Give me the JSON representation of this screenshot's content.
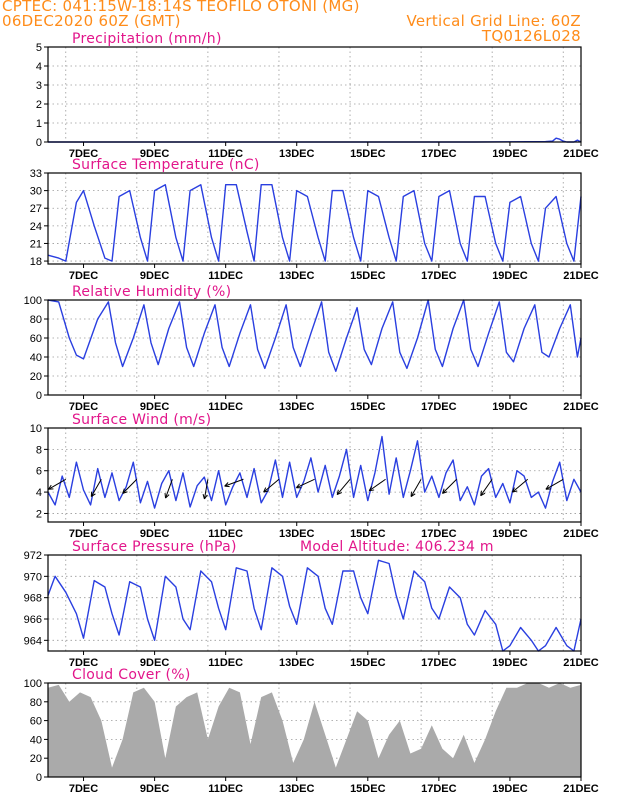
{
  "header": {
    "line1_left": "CPTEC:  041:15W-18:14S  TEOFILO OTONI (MG)",
    "line2_left": "06DEC2020 60Z (GMT)",
    "line2_right": "Vertical Grid Line: 60Z",
    "line3_right": "TQ0126L028"
  },
  "colors": {
    "header": "#ff8c1a",
    "panel_title": "#e2168b",
    "series": "#2a3fe0",
    "cloud_fill": "#aaaaaa",
    "grid": "#9a9a9a"
  },
  "x_axis": {
    "start_date": "06DEC2020 00Z",
    "end_date": "21DEC2020 00Z",
    "tick_labels": [
      "7DEC",
      "9DEC",
      "11DEC",
      "13DEC",
      "15DEC",
      "17DEC",
      "19DEC",
      "21DEC"
    ]
  },
  "model_altitude_label": "Model Altitude: 406.234 m",
  "chart_data": [
    {
      "type": "area",
      "title": "Precipitation (mm/h)",
      "ylim": [
        0,
        5
      ],
      "yticks": [
        0,
        1,
        2,
        3,
        4,
        5
      ],
      "grid": true,
      "x_days": [
        6.0,
        10.0,
        14.0,
        18.0,
        20.0,
        20.2,
        20.3,
        20.4,
        20.5,
        20.6,
        20.8,
        20.9,
        21.0
      ],
      "values": [
        0,
        0,
        0,
        0,
        0.02,
        0.05,
        0.2,
        0.15,
        0.05,
        0,
        0,
        0.1,
        0
      ]
    },
    {
      "type": "line",
      "title": "Surface Temperature (nC)",
      "ylim": [
        17.5,
        33
      ],
      "yticks": [
        18,
        21,
        24,
        27,
        30,
        33
      ],
      "grid": true,
      "x_days": [
        6.0,
        6.3,
        6.5,
        6.8,
        7.0,
        7.3,
        7.6,
        7.8,
        8.0,
        8.3,
        8.6,
        8.8,
        9.0,
        9.3,
        9.6,
        9.8,
        10.0,
        10.3,
        10.6,
        10.8,
        11.0,
        11.3,
        11.6,
        11.8,
        12.0,
        12.3,
        12.6,
        12.8,
        13.0,
        13.3,
        13.6,
        13.8,
        14.0,
        14.3,
        14.6,
        14.8,
        15.0,
        15.3,
        15.6,
        15.8,
        16.0,
        16.3,
        16.6,
        16.8,
        17.0,
        17.3,
        17.6,
        17.8,
        18.0,
        18.3,
        18.6,
        18.8,
        19.0,
        19.3,
        19.6,
        19.8,
        20.0,
        20.3,
        20.6,
        20.8,
        21.0
      ],
      "values": [
        19,
        18.5,
        18,
        28,
        30,
        24,
        18.5,
        18,
        29,
        30,
        22,
        18,
        30,
        31,
        22,
        18,
        30,
        31,
        22,
        18,
        31,
        31,
        23,
        18,
        31,
        31,
        22,
        18,
        30,
        29,
        22,
        18,
        30,
        30,
        22,
        18,
        30,
        29,
        22,
        18,
        29,
        30,
        21,
        18,
        29,
        30,
        21,
        18,
        29,
        29,
        21,
        18,
        28,
        29,
        21,
        18,
        27,
        29,
        21,
        18,
        29
      ]
    },
    {
      "type": "line",
      "title": "Relative Humidity (%)",
      "ylim": [
        0,
        100
      ],
      "yticks": [
        0,
        20,
        40,
        60,
        80,
        100
      ],
      "grid": true,
      "x_days": [
        6.0,
        6.3,
        6.6,
        6.8,
        7.0,
        7.4,
        7.7,
        7.9,
        8.1,
        8.4,
        8.7,
        8.9,
        9.1,
        9.4,
        9.7,
        9.9,
        10.1,
        10.4,
        10.7,
        10.9,
        11.1,
        11.4,
        11.7,
        11.9,
        12.1,
        12.4,
        12.7,
        12.9,
        13.1,
        13.4,
        13.7,
        13.9,
        14.1,
        14.4,
        14.7,
        14.9,
        15.1,
        15.4,
        15.7,
        15.9,
        16.1,
        16.4,
        16.7,
        16.9,
        17.1,
        17.4,
        17.7,
        17.9,
        18.1,
        18.4,
        18.7,
        18.9,
        19.1,
        19.4,
        19.7,
        19.9,
        20.1,
        20.4,
        20.7,
        20.9,
        21.0
      ],
      "values": [
        100,
        98,
        60,
        42,
        38,
        80,
        98,
        55,
        30,
        60,
        95,
        55,
        32,
        70,
        98,
        50,
        30,
        65,
        95,
        50,
        30,
        65,
        95,
        48,
        28,
        60,
        95,
        50,
        30,
        65,
        98,
        45,
        25,
        60,
        92,
        48,
        32,
        70,
        98,
        45,
        28,
        60,
        100,
        48,
        30,
        70,
        100,
        48,
        30,
        65,
        98,
        45,
        35,
        70,
        95,
        45,
        40,
        70,
        95,
        40,
        60
      ]
    },
    {
      "type": "line",
      "title": "Surface Wind (m/s)",
      "ylim": [
        1.2,
        10
      ],
      "yticks": [
        2,
        4,
        6,
        8,
        10
      ],
      "grid": true,
      "x_days": [
        6.0,
        6.2,
        6.4,
        6.6,
        6.8,
        7.0,
        7.2,
        7.4,
        7.6,
        7.8,
        8.0,
        8.2,
        8.4,
        8.6,
        8.8,
        9.0,
        9.2,
        9.4,
        9.6,
        9.8,
        10.0,
        10.2,
        10.4,
        10.6,
        10.8,
        11.0,
        11.2,
        11.4,
        11.6,
        11.8,
        12.0,
        12.2,
        12.4,
        12.6,
        12.8,
        13.0,
        13.2,
        13.4,
        13.6,
        13.8,
        14.0,
        14.2,
        14.4,
        14.6,
        14.8,
        15.0,
        15.2,
        15.4,
        15.6,
        15.8,
        16.0,
        16.2,
        16.4,
        16.6,
        16.8,
        17.0,
        17.2,
        17.4,
        17.6,
        17.8,
        18.0,
        18.2,
        18.4,
        18.6,
        18.8,
        19.0,
        19.2,
        19.4,
        19.6,
        19.8,
        20.0,
        20.2,
        20.4,
        20.6,
        20.8,
        21.0
      ],
      "values": [
        4,
        2.8,
        5.5,
        3.5,
        6.8,
        4.2,
        2.8,
        6.2,
        3.5,
        5.8,
        3.2,
        4.5,
        6.8,
        3.0,
        5.0,
        2.5,
        4.8,
        6.0,
        3.2,
        5.8,
        2.6,
        4.6,
        5.4,
        3.2,
        6.0,
        2.8,
        4.5,
        5.8,
        3.5,
        6.2,
        3.0,
        4.2,
        7.0,
        3.5,
        6.8,
        3.5,
        5.0,
        7.2,
        4.0,
        6.5,
        3.5,
        5.5,
        8.0,
        3.5,
        6.5,
        3.2,
        5.8,
        9.2,
        3.8,
        7.2,
        3.5,
        6.0,
        8.8,
        4.0,
        5.5,
        3.5,
        5.8,
        7.0,
        3.2,
        4.5,
        2.8,
        5.5,
        6.2,
        3.5,
        4.8,
        3.0,
        6.0,
        5.5,
        3.5,
        4.0,
        2.5,
        5.0,
        6.8,
        3.2,
        5.2,
        4.0
      ],
      "arrow_x_days": [
        6.5,
        7.5,
        8.5,
        9.5,
        10.5,
        11.5,
        12.5,
        13.5,
        14.5,
        15.5,
        16.5,
        17.5,
        18.5,
        19.5,
        20.5
      ],
      "arrow_dir_deg": [
        240,
        210,
        225,
        200,
        190,
        250,
        230,
        245,
        220,
        235,
        210,
        225,
        215,
        230,
        240
      ]
    },
    {
      "type": "line",
      "title": "Surface Pressure (hPa)",
      "ylim": [
        963,
        972
      ],
      "yticks": [
        964,
        966,
        968,
        970,
        972
      ],
      "grid": true,
      "x_days": [
        6.0,
        6.2,
        6.5,
        6.8,
        7.0,
        7.3,
        7.6,
        7.8,
        8.0,
        8.3,
        8.6,
        8.8,
        9.0,
        9.3,
        9.6,
        9.8,
        10.0,
        10.3,
        10.6,
        10.8,
        11.0,
        11.3,
        11.6,
        11.8,
        12.0,
        12.3,
        12.6,
        12.8,
        13.0,
        13.3,
        13.6,
        13.8,
        14.0,
        14.3,
        14.6,
        14.8,
        15.0,
        15.3,
        15.6,
        15.8,
        16.0,
        16.3,
        16.6,
        16.8,
        17.0,
        17.3,
        17.6,
        17.8,
        18.0,
        18.3,
        18.6,
        18.8,
        19.0,
        19.3,
        19.6,
        19.8,
        20.0,
        20.3,
        20.6,
        20.8,
        21.0
      ],
      "values": [
        968.2,
        970.0,
        968.5,
        966.5,
        964.2,
        969.6,
        969.0,
        966.5,
        964.5,
        969.5,
        969.0,
        966.0,
        964.0,
        970.0,
        969.0,
        966.0,
        965.0,
        970.5,
        969.5,
        967.0,
        965.0,
        970.8,
        970.5,
        967.0,
        965.0,
        970.8,
        970.0,
        967.2,
        965.5,
        970.8,
        970.0,
        967.0,
        965.5,
        970.5,
        970.5,
        968.0,
        966.5,
        971.5,
        971.2,
        968.2,
        966.0,
        970.5,
        969.5,
        967.0,
        966.0,
        969.0,
        968.0,
        965.5,
        964.5,
        966.8,
        965.5,
        963.0,
        963.5,
        965.2,
        964.0,
        963.0,
        963.5,
        965.2,
        963.5,
        963.0,
        966.0
      ]
    },
    {
      "type": "area",
      "title": "Cloud Cover (%)",
      "ylim": [
        0,
        100
      ],
      "yticks": [
        0,
        20,
        40,
        60,
        80,
        100
      ],
      "grid": true,
      "x_days": [
        6.0,
        6.3,
        6.6,
        6.9,
        7.2,
        7.5,
        7.8,
        8.1,
        8.4,
        8.7,
        9.0,
        9.3,
        9.6,
        9.9,
        10.2,
        10.5,
        10.8,
        11.1,
        11.4,
        11.7,
        12.0,
        12.3,
        12.6,
        12.9,
        13.2,
        13.5,
        13.8,
        14.1,
        14.4,
        14.7,
        15.0,
        15.3,
        15.6,
        15.9,
        16.2,
        16.5,
        16.8,
        17.1,
        17.4,
        17.7,
        18.0,
        18.3,
        18.6,
        18.9,
        19.2,
        19.5,
        19.8,
        20.1,
        20.4,
        20.7,
        21.0
      ],
      "values": [
        95,
        98,
        80,
        90,
        85,
        60,
        10,
        40,
        90,
        95,
        80,
        20,
        75,
        85,
        90,
        40,
        75,
        95,
        90,
        35,
        85,
        90,
        60,
        15,
        40,
        80,
        45,
        10,
        40,
        70,
        60,
        20,
        45,
        60,
        25,
        30,
        55,
        30,
        20,
        45,
        15,
        40,
        70,
        95,
        95,
        100,
        100,
        95,
        100,
        95,
        98
      ]
    }
  ]
}
